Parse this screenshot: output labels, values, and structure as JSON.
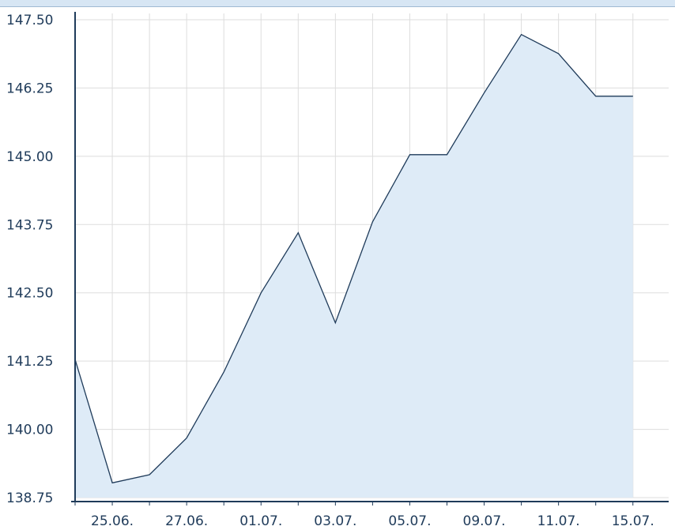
{
  "chart_data": {
    "type": "area",
    "title": "",
    "xlabel": "",
    "ylabel": "",
    "ylim": [
      138.75,
      147.5
    ],
    "y_ticks": [
      "147.50",
      "146.25",
      "145.00",
      "143.75",
      "142.50",
      "141.25",
      "140.00",
      "138.75"
    ],
    "x_ticks": [
      "25.06.",
      "27.06.",
      "01.07.",
      "03.07.",
      "05.07.",
      "09.07.",
      "11.07.",
      "15.07."
    ],
    "grid": true,
    "colors": {
      "line": "#1f3b5a",
      "fill": "#deebf7",
      "grid": "#dddddd",
      "axis": "#1f3b5a"
    },
    "series": [
      {
        "values": [
          141.28,
          139.02,
          139.17,
          139.84,
          141.05,
          142.5,
          143.6,
          141.95,
          143.8,
          145.03,
          145.03,
          146.16,
          147.23,
          146.88,
          146.1,
          146.1
        ]
      }
    ]
  }
}
